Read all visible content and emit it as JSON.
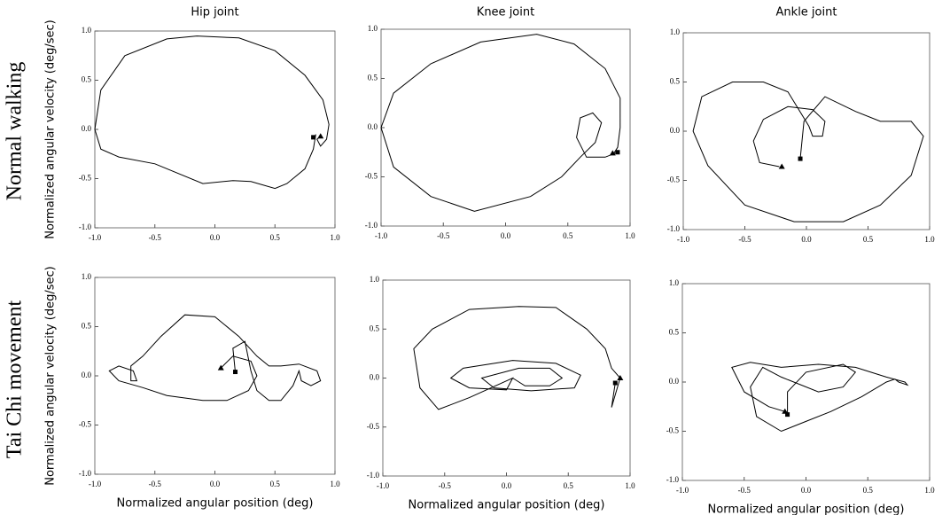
{
  "row_labels": [
    "Normal walking",
    "Tai Chi movement"
  ],
  "chart_data": [
    {
      "type": "line",
      "title": "Hip joint",
      "ylabel": "Normalized angular velocity (deg/sec)",
      "color": "#000000",
      "xlim": [
        -1,
        1
      ],
      "ylim": [
        -1,
        1
      ],
      "xticks": [
        {
          "value": -1,
          "label": "-1.0"
        },
        {
          "value": -0.5,
          "label": "-0.5"
        },
        {
          "value": 0,
          "label": "0.0"
        },
        {
          "value": 0.5,
          "label": "0.5"
        },
        {
          "value": 1,
          "label": "1.0"
        }
      ],
      "yticks": [
        {
          "value": -1,
          "label": "-1.0"
        },
        {
          "value": -0.5,
          "label": "-0.5"
        },
        {
          "value": 0,
          "label": "0.0"
        },
        {
          "value": 0.5,
          "label": "0.5"
        },
        {
          "value": 1,
          "label": "1.0"
        }
      ],
      "x": [
        0.84,
        0.82,
        0.75,
        0.6,
        0.5,
        0.3,
        0.15,
        -0.1,
        -0.5,
        -0.8,
        -0.95,
        -1.0,
        -0.95,
        -0.75,
        -0.4,
        -0.15,
        0.2,
        0.5,
        0.75,
        0.9,
        0.95,
        0.93,
        0.88,
        0.85,
        0.88
      ],
      "values": [
        -0.05,
        -0.2,
        -0.4,
        -0.55,
        -0.6,
        -0.53,
        -0.52,
        -0.55,
        -0.35,
        -0.28,
        -0.2,
        0.0,
        0.4,
        0.75,
        0.92,
        0.95,
        0.93,
        0.8,
        0.55,
        0.3,
        0.05,
        -0.1,
        -0.17,
        -0.1,
        -0.07
      ],
      "markers": [
        {
          "shape": "triangle",
          "x": 0.88,
          "y": -0.07
        },
        {
          "shape": "square",
          "x": 0.82,
          "y": -0.08
        }
      ]
    },
    {
      "type": "line",
      "title": "Knee joint",
      "color": "#000000",
      "xlim": [
        -1,
        1
      ],
      "ylim": [
        -1,
        1
      ],
      "xticks": [
        {
          "value": -1,
          "label": "-1.0"
        },
        {
          "value": -0.5,
          "label": "-0.5"
        },
        {
          "value": 0,
          "label": "0.0"
        },
        {
          "value": 0.5,
          "label": "0.5"
        },
        {
          "value": 1,
          "label": "1.0"
        }
      ],
      "yticks": [
        {
          "value": -1,
          "label": "-1.0"
        },
        {
          "value": -0.5,
          "label": "-0.5"
        },
        {
          "value": 0,
          "label": "0.0"
        },
        {
          "value": 0.5,
          "label": "0.5"
        },
        {
          "value": 1,
          "label": "1.0"
        }
      ],
      "x": [
        0.9,
        0.8,
        0.65,
        0.57,
        0.6,
        0.7,
        0.77,
        0.72,
        0.6,
        0.45,
        0.2,
        -0.25,
        -0.6,
        -0.9,
        -1.0,
        -0.9,
        -0.6,
        -0.2,
        0.25,
        0.55,
        0.8,
        0.92,
        0.92,
        0.9,
        0.87
      ],
      "values": [
        -0.25,
        -0.3,
        -0.3,
        -0.1,
        0.1,
        0.15,
        0.05,
        -0.15,
        -0.3,
        -0.5,
        -0.7,
        -0.85,
        -0.7,
        -0.4,
        0.0,
        0.35,
        0.65,
        0.87,
        0.95,
        0.85,
        0.6,
        0.3,
        0.0,
        -0.2,
        -0.26
      ],
      "markers": [
        {
          "shape": "triangle",
          "x": 0.86,
          "y": -0.26
        },
        {
          "shape": "square",
          "x": 0.9,
          "y": -0.25
        }
      ]
    },
    {
      "type": "line",
      "title": "Ankle joint",
      "color": "#000000",
      "xlim": [
        -1,
        1
      ],
      "ylim": [
        -1,
        1
      ],
      "xticks": [
        {
          "value": -1,
          "label": "-1.0"
        },
        {
          "value": -0.5,
          "label": "-0.5"
        },
        {
          "value": 0,
          "label": "0.0"
        },
        {
          "value": 0.5,
          "label": "0.5"
        },
        {
          "value": 1,
          "label": "1.0"
        }
      ],
      "yticks": [
        {
          "value": -1,
          "label": "-1.0"
        },
        {
          "value": -0.5,
          "label": "-0.5"
        },
        {
          "value": 0,
          "label": "0.0"
        },
        {
          "value": 0.5,
          "label": "0.5"
        },
        {
          "value": 1,
          "label": "1.0"
        }
      ],
      "x": [
        -0.22,
        -0.38,
        -0.43,
        -0.35,
        -0.15,
        0.05,
        0.15,
        0.13,
        0.05,
        0.02,
        -0.15,
        -0.35,
        -0.6,
        -0.85,
        -0.92,
        -0.8,
        -0.5,
        -0.1,
        0.3,
        0.6,
        0.85,
        0.95,
        0.85,
        0.6,
        0.4,
        0.15,
        -0.02,
        -0.05
      ],
      "values": [
        -0.36,
        -0.32,
        -0.1,
        0.12,
        0.25,
        0.22,
        0.1,
        -0.05,
        -0.05,
        0.05,
        0.4,
        0.5,
        0.5,
        0.35,
        0.0,
        -0.35,
        -0.75,
        -0.92,
        -0.92,
        -0.75,
        -0.45,
        -0.05,
        0.1,
        0.1,
        0.2,
        0.35,
        0.1,
        -0.28
      ],
      "markers": [
        {
          "shape": "triangle",
          "x": -0.2,
          "y": -0.36
        },
        {
          "shape": "square",
          "x": -0.05,
          "y": -0.28
        }
      ]
    },
    {
      "type": "line",
      "ylabel": "Normalized angular velocity (deg/sec)",
      "xlabel": "Normalized angular position (deg)",
      "color": "#000000",
      "xlim": [
        -1,
        1
      ],
      "ylim": [
        -1,
        1
      ],
      "xticks": [
        {
          "value": -1,
          "label": "-1.0"
        },
        {
          "value": -0.5,
          "label": "-0.5"
        },
        {
          "value": 0,
          "label": "0.0"
        },
        {
          "value": 0.5,
          "label": "0.5"
        },
        {
          "value": 1,
          "label": "1.0"
        }
      ],
      "yticks": [
        {
          "value": -1,
          "label": "-1.0"
        },
        {
          "value": -0.5,
          "label": "-0.5"
        },
        {
          "value": 0,
          "label": "0.0"
        },
        {
          "value": 0.5,
          "label": "0.5"
        },
        {
          "value": 1,
          "label": "1.0"
        }
      ],
      "x": [
        0.05,
        0.15,
        0.3,
        0.35,
        0.28,
        0.1,
        -0.1,
        -0.4,
        -0.6,
        -0.8,
        -0.88,
        -0.8,
        -0.68,
        -0.65,
        -0.7,
        -0.7,
        -0.6,
        -0.45,
        -0.25,
        0.0,
        0.2,
        0.35,
        0.45,
        0.55,
        0.7,
        0.85,
        0.88,
        0.8,
        0.72,
        0.7,
        0.65,
        0.55,
        0.45,
        0.35,
        0.3,
        0.25,
        0.15,
        0.17
      ],
      "values": [
        0.08,
        0.2,
        0.15,
        0.0,
        -0.15,
        -0.25,
        -0.25,
        -0.2,
        -0.12,
        -0.05,
        0.05,
        0.1,
        0.05,
        -0.05,
        -0.05,
        0.1,
        0.2,
        0.4,
        0.62,
        0.6,
        0.4,
        0.2,
        0.1,
        0.1,
        0.12,
        0.05,
        -0.05,
        -0.1,
        -0.05,
        0.05,
        -0.1,
        -0.25,
        -0.25,
        -0.15,
        0.05,
        0.35,
        0.28,
        0.04
      ],
      "markers": [
        {
          "shape": "triangle",
          "x": 0.05,
          "y": 0.08
        },
        {
          "shape": "square",
          "x": 0.17,
          "y": 0.04
        }
      ]
    },
    {
      "type": "line",
      "xlabel": "Normalized angular position (deg)",
      "color": "#000000",
      "xlim": [
        -1,
        1
      ],
      "ylim": [
        -1,
        1
      ],
      "xticks": [
        {
          "value": -1,
          "label": "-1.0"
        },
        {
          "value": -0.5,
          "label": "-0.5"
        },
        {
          "value": 0,
          "label": "0.0"
        },
        {
          "value": 0.5,
          "label": "0.5"
        },
        {
          "value": 1,
          "label": "1.0"
        }
      ],
      "yticks": [
        {
          "value": -1,
          "label": "-1.0"
        },
        {
          "value": -0.5,
          "label": "-0.5"
        },
        {
          "value": 0,
          "label": "0.0"
        },
        {
          "value": 0.5,
          "label": "0.5"
        },
        {
          "value": 1,
          "label": "1.0"
        }
      ],
      "x": [
        0.05,
        0.15,
        0.35,
        0.45,
        0.35,
        0.1,
        -0.2,
        -0.1,
        0.2,
        0.55,
        0.6,
        0.4,
        0.05,
        -0.35,
        -0.45,
        -0.3,
        0.0,
        0.05,
        -0.3,
        -0.55,
        -0.7,
        -0.75,
        -0.6,
        -0.3,
        0.1,
        0.4,
        0.65,
        0.8,
        0.85,
        0.92,
        0.85,
        0.88
      ],
      "values": [
        0.0,
        -0.08,
        -0.08,
        0.0,
        0.1,
        0.1,
        0.0,
        -0.1,
        -0.13,
        -0.1,
        0.03,
        0.15,
        0.18,
        0.1,
        0.0,
        -0.1,
        -0.12,
        0.0,
        -0.2,
        -0.32,
        -0.1,
        0.3,
        0.5,
        0.7,
        0.73,
        0.72,
        0.5,
        0.3,
        0.1,
        0.0,
        -0.3,
        -0.05
      ],
      "markers": [
        {
          "shape": "triangle",
          "x": 0.92,
          "y": 0.0
        },
        {
          "shape": "square",
          "x": 0.88,
          "y": -0.05
        }
      ]
    },
    {
      "type": "line",
      "xlabel": "Normalized angular position (deg)",
      "color": "#000000",
      "xlim": [
        -1,
        1
      ],
      "ylim": [
        -1,
        1
      ],
      "xticks": [
        {
          "value": -1,
          "label": "-1.0"
        },
        {
          "value": -0.5,
          "label": "-0.5"
        },
        {
          "value": 0,
          "label": "0.0"
        },
        {
          "value": 0.5,
          "label": "0.5"
        },
        {
          "value": 1,
          "label": "1.0"
        }
      ],
      "yticks": [
        {
          "value": -1,
          "label": "-1.0"
        },
        {
          "value": -0.5,
          "label": "-0.5"
        },
        {
          "value": 0,
          "label": "0.0"
        },
        {
          "value": 0.5,
          "label": "0.5"
        },
        {
          "value": 1,
          "label": "1.0"
        }
      ],
      "x": [
        -0.17,
        -0.3,
        -0.5,
        -0.6,
        -0.45,
        -0.2,
        0.1,
        0.4,
        0.65,
        0.8,
        0.82,
        0.75,
        0.72,
        0.65,
        0.45,
        0.2,
        0.0,
        -0.2,
        -0.4,
        -0.45,
        -0.35,
        -0.2,
        0.1,
        0.3,
        0.4,
        0.3,
        0.0,
        -0.15,
        -0.15
      ],
      "values": [
        -0.3,
        -0.25,
        -0.1,
        0.15,
        0.2,
        0.15,
        0.18,
        0.15,
        0.05,
        0.0,
        -0.03,
        0.0,
        0.03,
        0.0,
        -0.15,
        -0.3,
        -0.4,
        -0.5,
        -0.35,
        -0.05,
        0.15,
        0.05,
        -0.1,
        -0.05,
        0.1,
        0.18,
        0.1,
        -0.1,
        -0.33
      ],
      "markers": [
        {
          "shape": "triangle",
          "x": -0.17,
          "y": -0.3
        },
        {
          "shape": "square",
          "x": -0.15,
          "y": -0.33
        }
      ]
    }
  ]
}
